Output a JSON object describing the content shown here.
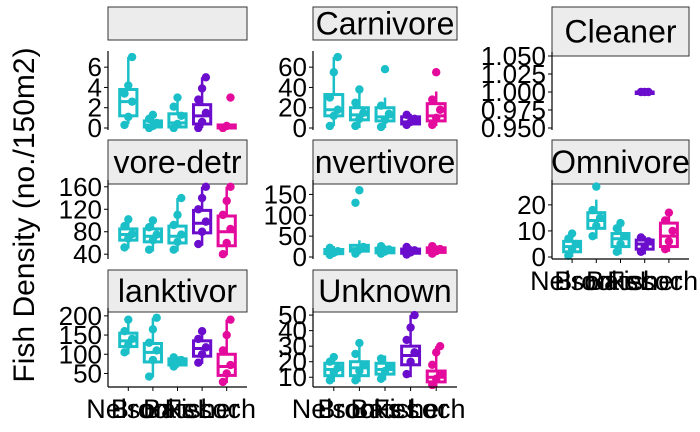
{
  "chart_data": {
    "type": "boxplot",
    "ylabel": "Fish Density (no./150m2)",
    "x_categories": [
      "Nelson",
      "Brooks",
      "Bates",
      "Fisher",
      "Loch"
    ],
    "x_tick_labels": [
      "Nelson",
      "Brooks",
      "Bates",
      "Fisher",
      "Loch"
    ],
    "colors": [
      "#1abfc7",
      "#1abfc7",
      "#1abfc7",
      "#6a0dcc",
      "#e40a9c"
    ],
    "panels": [
      {
        "title": "",
        "ylim": [
          0,
          7.2
        ],
        "yticks": [
          0,
          2,
          4,
          6
        ],
        "boxes": [
          {
            "q1": 1.2,
            "median": 2.6,
            "q3": 3.8,
            "lo": 0.4,
            "hi": 7.0,
            "points": [
              0.3,
              1.1,
              2.6,
              3.4,
              4.2,
              7.0
            ]
          },
          {
            "q1": 0.1,
            "median": 0.3,
            "q3": 0.7,
            "lo": 0,
            "hi": 1.3,
            "points": [
              0,
              0.2,
              0.5,
              0.9,
              1.3
            ]
          },
          {
            "q1": 0.1,
            "median": 0.5,
            "q3": 1.4,
            "lo": 0,
            "hi": 3.0,
            "points": [
              0,
              0.4,
              1.2,
              2.1,
              3.0
            ]
          },
          {
            "q1": 0.4,
            "median": 1.2,
            "q3": 2.3,
            "lo": 0,
            "hi": 5.0,
            "points": [
              0,
              0.6,
              1.5,
              2.8,
              3.9,
              5.0
            ]
          },
          {
            "q1": 0,
            "median": 0,
            "q3": 0.3,
            "lo": 0,
            "hi": 0.6,
            "points": [
              0,
              0.2,
              3.0
            ]
          }
        ]
      },
      {
        "title": "Carnivore",
        "ylim": [
          0,
          72
        ],
        "yticks": [
          0,
          20,
          40,
          60
        ],
        "boxes": [
          {
            "q1": 12,
            "median": 18,
            "q3": 33,
            "lo": 2,
            "hi": 70,
            "points": [
              2,
              12,
              18,
              30,
              55,
              70
            ]
          },
          {
            "q1": 8,
            "median": 13,
            "q3": 20,
            "lo": 0,
            "hi": 38,
            "points": [
              2,
              9,
              15,
              25,
              38
            ]
          },
          {
            "q1": 7,
            "median": 11,
            "q3": 20,
            "lo": 0,
            "hi": 30,
            "points": [
              1,
              8,
              14,
              22,
              58
            ]
          },
          {
            "q1": 4,
            "median": 6,
            "q3": 11,
            "lo": 2,
            "hi": 14,
            "points": [
              3,
              6,
              9,
              13
            ]
          },
          {
            "q1": 7,
            "median": 12,
            "q3": 24,
            "lo": 2,
            "hi": 36,
            "points": [
              3,
              10,
              18,
              28,
              55
            ]
          }
        ]
      },
      {
        "title": "Cleaner",
        "ylim": [
          0.95,
          1.05
        ],
        "yticks": [
          0.95,
          0.975,
          1.0,
          1.025,
          1.05
        ],
        "tick_labels": [
          "0.950",
          "0.975",
          "1.000",
          "1.025",
          "1.050"
        ],
        "boxes": [
          null,
          null,
          null,
          {
            "q1": 1,
            "median": 1,
            "q3": 1,
            "lo": 1,
            "hi": 1,
            "points": [
              1,
              1,
              1
            ]
          },
          null
        ]
      },
      {
        "title": "Detritivore-detritus",
        "title_shown": "vore-detr",
        "ylim": [
          35,
          165
        ],
        "yticks": [
          40,
          80,
          120,
          160
        ],
        "boxes": [
          {
            "q1": 65,
            "median": 75,
            "q3": 85,
            "lo": 50,
            "hi": 100,
            "points": [
              52,
              68,
              76,
              90,
              102
            ]
          },
          {
            "q1": 62,
            "median": 72,
            "q3": 85,
            "lo": 45,
            "hi": 100,
            "points": [
              48,
              65,
              75,
              88,
              100
            ]
          },
          {
            "q1": 60,
            "median": 72,
            "q3": 90,
            "lo": 45,
            "hi": 140,
            "points": [
              48,
              62,
              75,
              92,
              110,
              140
            ]
          },
          {
            "q1": 78,
            "median": 95,
            "q3": 118,
            "lo": 55,
            "hi": 160,
            "points": [
              58,
              80,
              98,
              120,
              140,
              160
            ]
          },
          {
            "q1": 55,
            "median": 80,
            "q3": 108,
            "lo": 38,
            "hi": 160,
            "points": [
              40,
              60,
              85,
              110,
              135,
              160
            ]
          }
        ]
      },
      {
        "title": "Invertivore",
        "title_shown": "nvertivore",
        "ylim": [
          0,
          175
        ],
        "yticks": [
          0,
          50,
          100,
          150
        ],
        "boxes": [
          {
            "q1": 8,
            "median": 12,
            "q3": 18,
            "lo": 4,
            "hi": 26,
            "points": [
              5,
              10,
              14,
              22
            ]
          },
          {
            "q1": 14,
            "median": 20,
            "q3": 28,
            "lo": 6,
            "hi": 40,
            "points": [
              8,
              18,
              24,
              130,
              160
            ]
          },
          {
            "q1": 10,
            "median": 15,
            "q3": 21,
            "lo": 6,
            "hi": 28,
            "points": [
              8,
              13,
              18,
              26
            ]
          },
          {
            "q1": 9,
            "median": 13,
            "q3": 19,
            "lo": 4,
            "hi": 26,
            "points": [
              6,
              11,
              16,
              24
            ]
          },
          {
            "q1": 11,
            "median": 16,
            "q3": 22,
            "lo": 6,
            "hi": 28,
            "points": [
              8,
              14,
              19,
              26
            ]
          }
        ]
      },
      {
        "title": "Omnivore",
        "title_shown": "Omnivore",
        "ylim": [
          0,
          28
        ],
        "yticks": [
          0,
          10,
          20
        ],
        "boxes": [
          {
            "q1": 2,
            "median": 4,
            "q3": 6,
            "lo": 0,
            "hi": 9,
            "points": [
              0.5,
              3,
              5,
              7,
              9
            ]
          },
          {
            "q1": 11,
            "median": 14,
            "q3": 17,
            "lo": 7,
            "hi": 22,
            "points": [
              8,
              12,
              15,
              18,
              27
            ]
          },
          {
            "q1": 4,
            "median": 7,
            "q3": 9,
            "lo": 1,
            "hi": 13,
            "points": [
              2,
              5,
              8,
              11,
              13
            ]
          },
          {
            "q1": 3,
            "median": 5,
            "q3": 6.5,
            "lo": 1,
            "hi": 8,
            "points": [
              2,
              4,
              6,
              7.5
            ]
          },
          {
            "q1": 4,
            "median": 8,
            "q3": 13,
            "lo": 2,
            "hi": 17,
            "points": [
              3,
              6,
              10,
              14,
              17
            ]
          }
        ]
      },
      {
        "title": "Planktivore",
        "title_shown": "lanktivor",
        "ylim": [
          20,
          210
        ],
        "yticks": [
          50,
          100,
          150,
          200
        ],
        "boxes": [
          {
            "q1": 120,
            "median": 135,
            "q3": 155,
            "lo": 100,
            "hi": 190,
            "points": [
              105,
              125,
              140,
              160,
              190
            ]
          },
          {
            "q1": 80,
            "median": 105,
            "q3": 128,
            "lo": 40,
            "hi": 195,
            "points": [
              42,
              85,
              110,
              130,
              165,
              195
            ]
          },
          {
            "q1": 72,
            "median": 80,
            "q3": 88,
            "lo": 65,
            "hi": 95,
            "points": [
              68,
              78,
              85,
              92
            ]
          },
          {
            "q1": 95,
            "median": 115,
            "q3": 135,
            "lo": 75,
            "hi": 160,
            "points": [
              78,
              100,
              118,
              140,
              160
            ]
          },
          {
            "q1": 45,
            "median": 68,
            "q3": 100,
            "lo": 25,
            "hi": 190,
            "points": [
              28,
              50,
              72,
              110,
              150,
              190
            ]
          }
        ]
      },
      {
        "title": "Unknown",
        "title_shown": "Unknown",
        "ylim": [
          5,
          52
        ],
        "yticks": [
          10,
          20,
          30,
          40,
          50
        ],
        "tick_labels": [
          "10",
          "20",
          "30",
          "40",
          "50"
        ],
        "boxes": [
          {
            "q1": 11,
            "median": 15,
            "q3": 19,
            "lo": 7,
            "hi": 23,
            "points": [
              8,
              13,
              16,
              20,
              23
            ]
          },
          {
            "q1": 11,
            "median": 16,
            "q3": 20,
            "lo": 7,
            "hi": 32,
            "points": [
              8,
              14,
              18,
              25,
              32
            ]
          },
          {
            "q1": 12,
            "median": 15,
            "q3": 19,
            "lo": 8,
            "hi": 24,
            "points": [
              9,
              14,
              17,
              22
            ]
          },
          {
            "q1": 18,
            "median": 24,
            "q3": 30,
            "lo": 10,
            "hi": 50,
            "points": [
              12,
              20,
              26,
              34,
              42,
              50
            ]
          },
          {
            "q1": 7,
            "median": 10,
            "q3": 14,
            "lo": 4,
            "hi": 30,
            "points": [
              5,
              9,
              12,
              18,
              26,
              30
            ]
          }
        ]
      }
    ]
  }
}
